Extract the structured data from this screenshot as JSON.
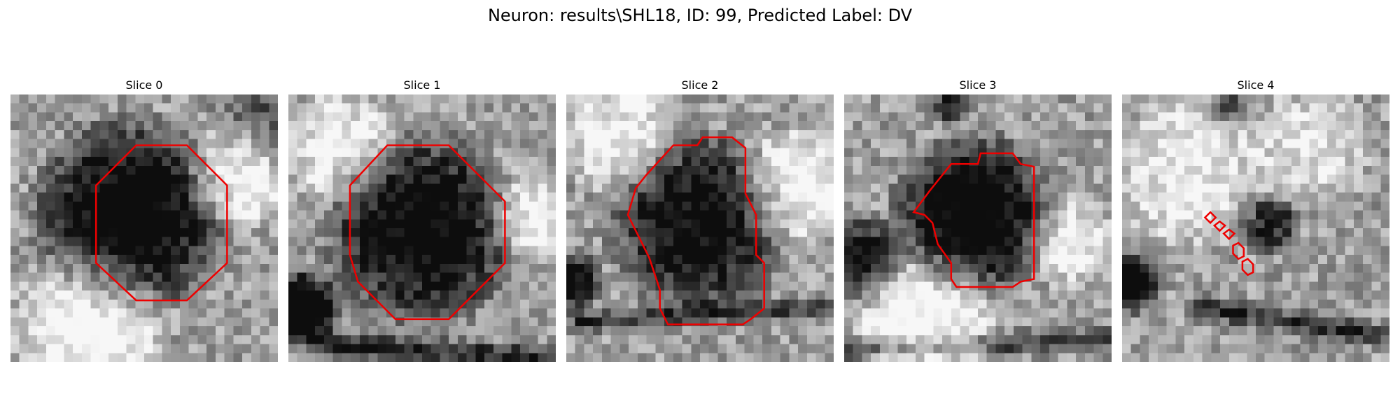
{
  "figure": {
    "title": "Neuron: results\\SHL18, ID: 99, Predicted Label: DV",
    "contour_color": "#ee0000"
  },
  "panels": [
    {
      "title": "Slice 0",
      "pattern": {
        "dark": [
          [
            0.45,
            0.45,
            0.3,
            0.75
          ],
          [
            0.95,
            0.1,
            0.18,
            0.28
          ]
        ],
        "light": [
          [
            0.85,
            0.3,
            0.18,
            0.45
          ],
          [
            0.3,
            0.85,
            0.25,
            0.45
          ]
        ],
        "band": null
      },
      "contour": [
        [
          0.47,
          0.19
        ],
        [
          0.66,
          0.19
        ],
        [
          0.81,
          0.34
        ],
        [
          0.81,
          0.63
        ],
        [
          0.66,
          0.77
        ],
        [
          0.47,
          0.77
        ],
        [
          0.32,
          0.63
        ],
        [
          0.32,
          0.34
        ]
      ]
    },
    {
      "title": "Slice 1",
      "pattern": {
        "dark": [
          [
            0.5,
            0.5,
            0.3,
            0.7
          ],
          [
            0.05,
            0.8,
            0.12,
            0.85
          ]
        ],
        "light": [
          [
            0.9,
            0.45,
            0.15,
            0.4
          ],
          [
            0.2,
            0.2,
            0.2,
            0.35
          ]
        ],
        "band": [
          0.1,
          0.93,
          0.95,
          0.98,
          0.55
        ]
      },
      "contour": [
        [
          0.37,
          0.19
        ],
        [
          0.6,
          0.19
        ],
        [
          0.81,
          0.4
        ],
        [
          0.81,
          0.63
        ],
        [
          0.6,
          0.84
        ],
        [
          0.4,
          0.84
        ],
        [
          0.26,
          0.7
        ],
        [
          0.23,
          0.6
        ],
        [
          0.23,
          0.34
        ]
      ]
    },
    {
      "title": "Slice 2",
      "pattern": {
        "dark": [
          [
            0.5,
            0.48,
            0.28,
            0.65
          ],
          [
            0.02,
            0.7,
            0.1,
            0.6
          ]
        ],
        "light": [
          [
            0.85,
            0.35,
            0.2,
            0.4
          ],
          [
            0.2,
            0.15,
            0.2,
            0.35
          ]
        ],
        "band": [
          0.05,
          0.85,
          0.95,
          0.8,
          0.45
        ]
      },
      "contour": [
        [
          0.4,
          0.19
        ],
        [
          0.49,
          0.19
        ],
        [
          0.51,
          0.16
        ],
        [
          0.62,
          0.16
        ],
        [
          0.67,
          0.2
        ],
        [
          0.67,
          0.37
        ],
        [
          0.71,
          0.45
        ],
        [
          0.71,
          0.6
        ],
        [
          0.74,
          0.63
        ],
        [
          0.74,
          0.8
        ],
        [
          0.69,
          0.84
        ],
        [
          0.66,
          0.86
        ],
        [
          0.38,
          0.86
        ],
        [
          0.35,
          0.8
        ],
        [
          0.35,
          0.73
        ],
        [
          0.31,
          0.61
        ],
        [
          0.23,
          0.45
        ],
        [
          0.26,
          0.35
        ],
        [
          0.3,
          0.3
        ]
      ]
    },
    {
      "title": "Slice 3",
      "pattern": {
        "dark": [
          [
            0.48,
            0.45,
            0.25,
            0.75
          ],
          [
            0.4,
            0.05,
            0.06,
            0.55
          ],
          [
            0.05,
            0.62,
            0.15,
            0.55
          ]
        ],
        "light": [
          [
            0.3,
            0.85,
            0.25,
            0.45
          ],
          [
            0.85,
            0.55,
            0.15,
            0.35
          ]
        ],
        "band": [
          0.0,
          0.95,
          1.0,
          0.92,
          0.45
        ]
      },
      "contour": [
        [
          0.4,
          0.26
        ],
        [
          0.5,
          0.26
        ],
        [
          0.51,
          0.22
        ],
        [
          0.63,
          0.22
        ],
        [
          0.66,
          0.26
        ],
        [
          0.71,
          0.27
        ],
        [
          0.71,
          0.69
        ],
        [
          0.66,
          0.7
        ],
        [
          0.63,
          0.72
        ],
        [
          0.42,
          0.72
        ],
        [
          0.4,
          0.69
        ],
        [
          0.4,
          0.63
        ],
        [
          0.35,
          0.56
        ],
        [
          0.33,
          0.48
        ],
        [
          0.3,
          0.45
        ],
        [
          0.26,
          0.44
        ],
        [
          0.32,
          0.36
        ]
      ]
    },
    {
      "title": "Slice 4",
      "pattern": {
        "dark": [
          [
            0.02,
            0.7,
            0.1,
            0.85
          ],
          [
            0.4,
            0.05,
            0.06,
            0.35
          ],
          [
            0.55,
            0.48,
            0.1,
            0.5
          ]
        ],
        "light": [
          [
            0.25,
            0.3,
            0.25,
            0.35
          ],
          [
            0.7,
            0.2,
            0.2,
            0.3
          ]
        ],
        "band": [
          0.3,
          0.8,
          0.95,
          0.9,
          0.5
        ]
      },
      "contour": [
        [
          0.33,
          0.44
        ],
        [
          0.35,
          0.46
        ],
        [
          0.33,
          0.48
        ],
        [
          0.31,
          0.46
        ]
      ]
    }
  ]
}
